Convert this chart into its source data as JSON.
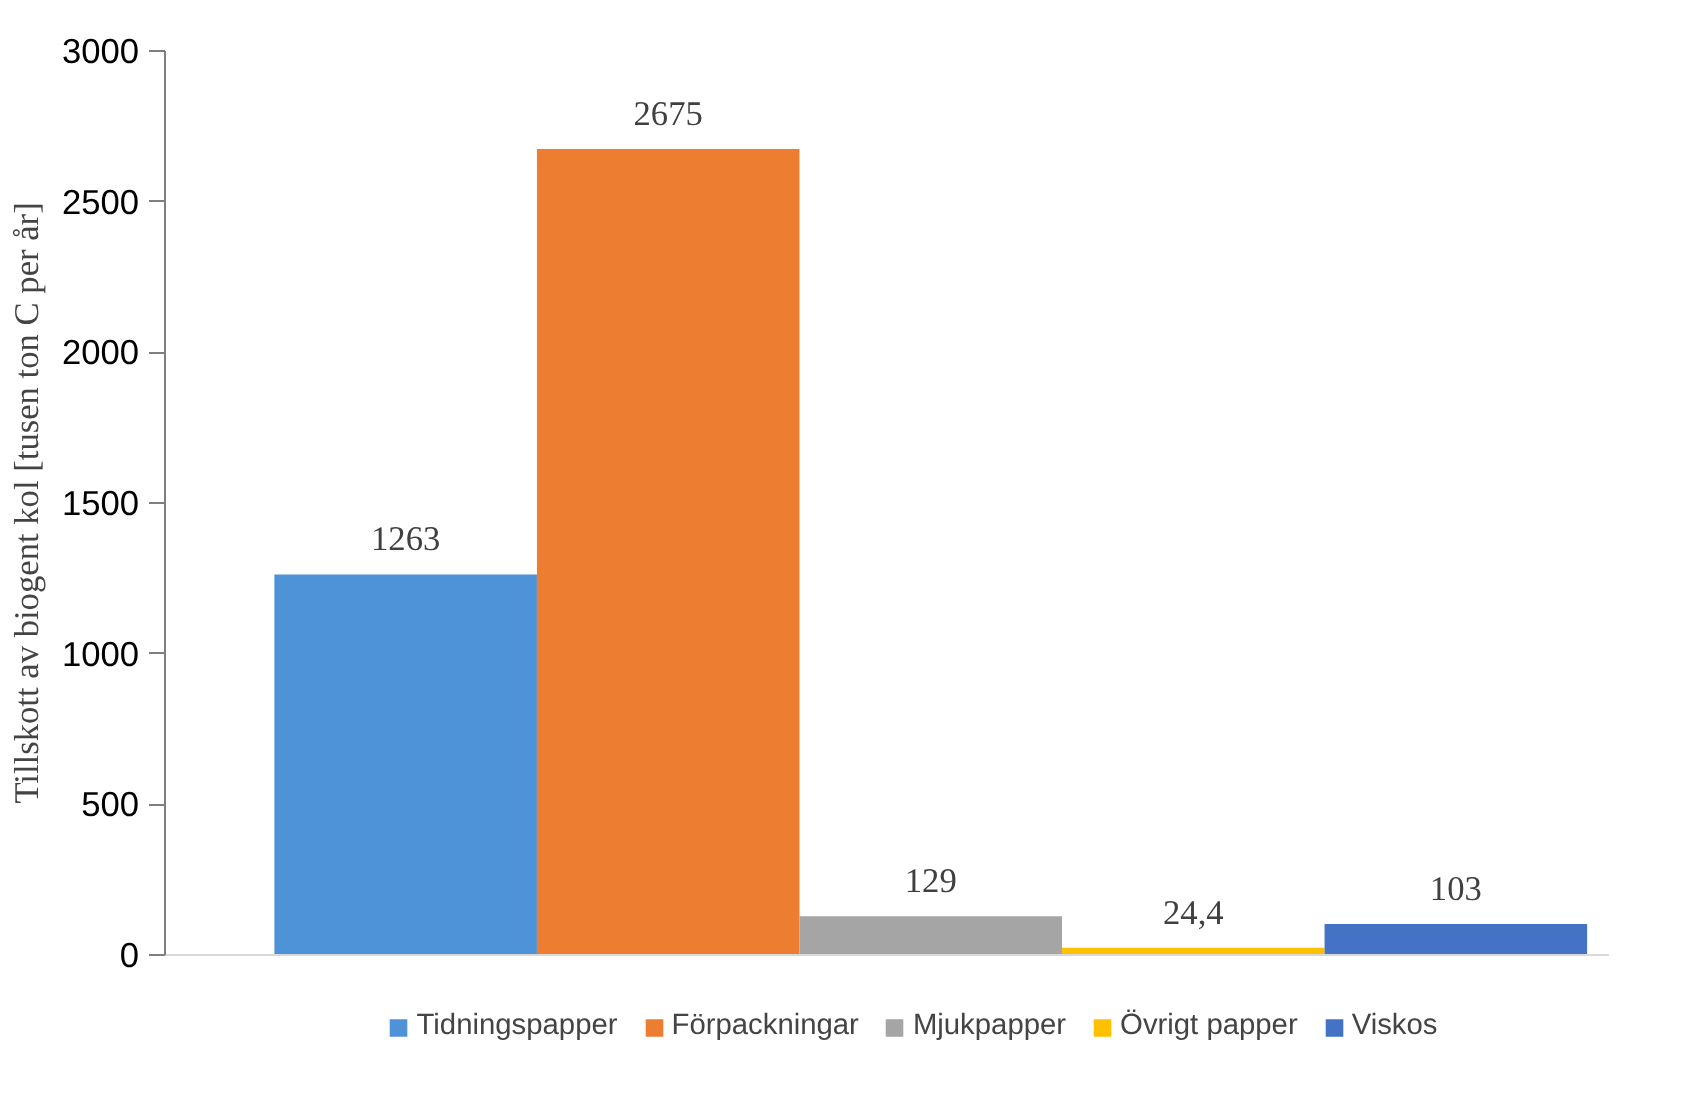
{
  "chart_data": {
    "type": "bar",
    "ylabel": "Tillskott av biogent kol [tusen ton C per år]",
    "categories": [
      null
    ],
    "series": [
      {
        "name": "Tidningspapper",
        "color": "#4e93d8",
        "values": [
          1263
        ],
        "value_labels": [
          "1263"
        ]
      },
      {
        "name": "Förpackningar",
        "color": "#ed7d31",
        "values": [
          2675
        ],
        "value_labels": [
          "2675"
        ]
      },
      {
        "name": "Mjukpapper",
        "color": "#a5a5a5",
        "values": [
          129
        ],
        "value_labels": [
          "129"
        ]
      },
      {
        "name": "Övrigt papper",
        "color": "#ffc000",
        "values": [
          24.4
        ],
        "value_labels": [
          "24,4"
        ]
      },
      {
        "name": "Viskos",
        "color": "#4472c4",
        "values": [
          103
        ],
        "value_labels": [
          "103"
        ]
      }
    ],
    "ylim": [
      0,
      3000
    ],
    "yticks": [
      0,
      500,
      1000,
      1500,
      2000,
      2500,
      3000
    ],
    "grid": false,
    "legend": "bottom",
    "tick_labels": "y"
  }
}
